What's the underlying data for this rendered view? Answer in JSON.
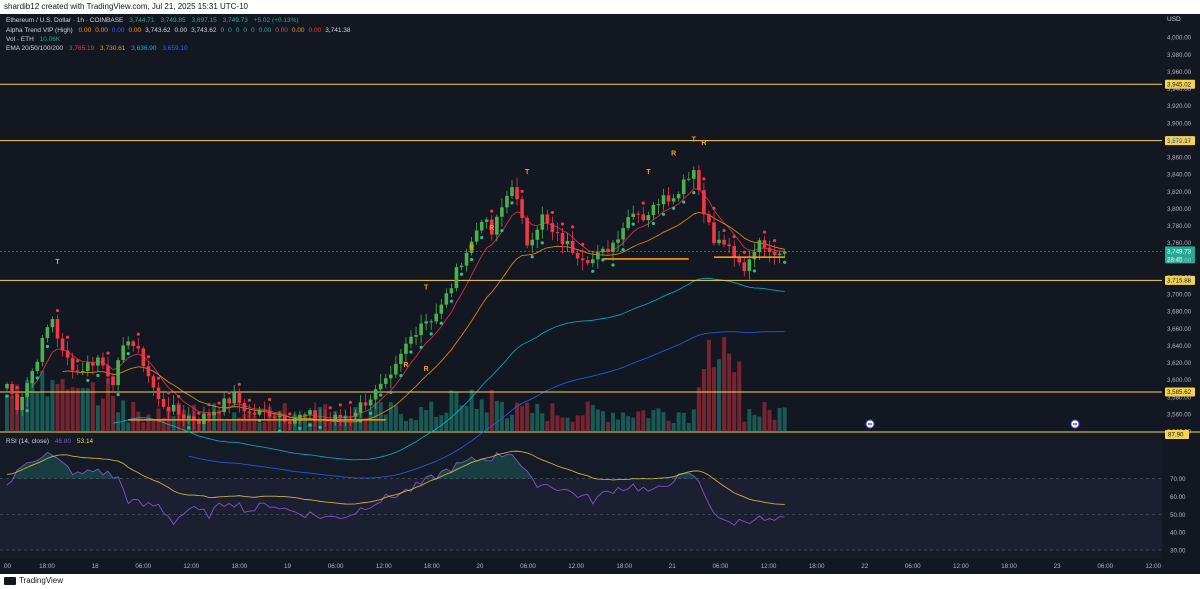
{
  "caption": "shardib12 created with TradingView.com, Jul 21, 2025 15:31 UTC-10",
  "brand": "TradingView",
  "legend": {
    "symbol": "Ethereum / U.S. Dollar · 1h · COINBASE",
    "ohlc": [
      "3,744.71",
      "3,749.85",
      "3,697.15",
      "3,749.73",
      "+5.02 (+0.13%)"
    ],
    "alpha_title": "Alpha Trend VIP (High)",
    "alpha_values": [
      "0.00",
      "0.00",
      "0.00",
      "0.00",
      "3,743.62",
      "0.00",
      "3,743.62",
      "0",
      "0",
      "0",
      "0",
      "0",
      "0.00",
      "0.00",
      "0.00",
      "0.00",
      "3,741.38"
    ],
    "vol_title": "Vol · ETH",
    "vol_value": "10.06K",
    "ema_title": "EMA 20/50/100/200",
    "ema_values": [
      "3,765.19",
      "3,730.61",
      "3,636.90",
      "3,659.10"
    ]
  },
  "currency": "USD",
  "chart_data": [
    {
      "type": "candlestick",
      "title": "Ethereum / U.S. Dollar · 1h · COINBASE",
      "ylim": [
        3540,
        4020
      ],
      "y_ticks": [
        3540,
        3560,
        3580,
        3600,
        3620,
        3640,
        3660,
        3680,
        3700,
        3720,
        3740,
        3760,
        3780,
        3800,
        3820,
        3840,
        3860,
        3880,
        3900,
        3920,
        3940,
        3960,
        3980,
        4000
      ],
      "y_tick_labels": [
        "3,540.00",
        "3,560.00",
        "3,580.00",
        "3,600.00",
        "3,620.00",
        "3,640.00",
        "3,660.00",
        "3,680.00",
        "3,700.00",
        "3,720.00",
        "3,740.00",
        "3,760.00",
        "3,780.00",
        "3,800.00",
        "3,820.00",
        "3,840.00",
        "3,860.00",
        "3,880.00",
        "3,900.00",
        "3,920.00",
        "3,940.00",
        "3,960.00",
        "3,980.00",
        "4,000.00"
      ],
      "x_labels": [
        "18:00",
        "18",
        "06:00",
        "12:00",
        "18:00",
        "19",
        "06:00",
        "12:00",
        "18:00",
        "20",
        "06:00",
        "12:00",
        "18:00",
        "21",
        "06:00",
        "12:00",
        "18:00",
        "22",
        "06:00",
        "12:00",
        "18:00",
        "23",
        "06:00",
        "12:00"
      ],
      "x_label_first": "00",
      "levels": [
        {
          "value": 3945.02,
          "label": "3,945.02"
        },
        {
          "value": 3879.17,
          "label": "3,879.17"
        },
        {
          "value": 3715.88,
          "label": "3,715.88"
        },
        {
          "value": 3585.62,
          "label": "3,585.62"
        }
      ],
      "last_price": {
        "value": 3749.73,
        "label": "3,749.73",
        "countdown": "28:45"
      },
      "anchors": [
        [
          0,
          3595
        ],
        [
          2,
          3570
        ],
        [
          5,
          3610
        ],
        [
          8,
          3660
        ],
        [
          9,
          3672
        ],
        [
          11,
          3630
        ],
        [
          14,
          3610
        ],
        [
          18,
          3625
        ],
        [
          21,
          3600
        ],
        [
          24,
          3650
        ],
        [
          27,
          3620
        ],
        [
          30,
          3575
        ],
        [
          34,
          3560
        ],
        [
          38,
          3553
        ],
        [
          42,
          3568
        ],
        [
          45,
          3580
        ],
        [
          48,
          3560
        ],
        [
          52,
          3562
        ],
        [
          56,
          3555
        ],
        [
          60,
          3558
        ],
        [
          64,
          3552
        ],
        [
          68,
          3560
        ],
        [
          72,
          3580
        ],
        [
          76,
          3600
        ],
        [
          79,
          3640
        ],
        [
          82,
          3668
        ],
        [
          84,
          3672
        ],
        [
          86,
          3685
        ],
        [
          88,
          3710
        ],
        [
          90,
          3740
        ],
        [
          92,
          3760
        ],
        [
          94,
          3790
        ],
        [
          96,
          3770
        ],
        [
          98,
          3800
        ],
        [
          100,
          3830
        ],
        [
          103,
          3760
        ],
        [
          106,
          3790
        ],
        [
          108,
          3770
        ],
        [
          110,
          3762
        ],
        [
          113,
          3748
        ],
        [
          116,
          3740
        ],
        [
          118,
          3748
        ],
        [
          120,
          3760
        ],
        [
          122,
          3780
        ],
        [
          124,
          3800
        ],
        [
          126,
          3790
        ],
        [
          128,
          3800
        ],
        [
          130,
          3820
        ],
        [
          132,
          3810
        ],
        [
          134,
          3835
        ],
        [
          136,
          3845
        ],
        [
          138,
          3800
        ],
        [
          140,
          3760
        ],
        [
          142,
          3760
        ],
        [
          144,
          3740
        ],
        [
          146,
          3730
        ],
        [
          148,
          3755
        ],
        [
          150,
          3760
        ],
        [
          152,
          3750
        ],
        [
          154,
          3749.73
        ]
      ],
      "signals": [
        {
          "i": 10,
          "text": "T",
          "price": 3735
        },
        {
          "i": 79,
          "text": "R",
          "price": 3615
        },
        {
          "i": 83,
          "text": "R",
          "price": 3610
        },
        {
          "i": 83,
          "text": "T",
          "price": 3705
        },
        {
          "i": 92,
          "text": "R",
          "price": 3752
        },
        {
          "i": 96,
          "text": "R",
          "price": 3775
        },
        {
          "i": 103,
          "text": "T",
          "price": 3840
        },
        {
          "i": 127,
          "text": "T",
          "price": 3840
        },
        {
          "i": 132,
          "text": "R",
          "price": 3862
        },
        {
          "i": 136,
          "text": "T",
          "price": 3878
        },
        {
          "i": 138,
          "text": "R",
          "price": 3874
        }
      ]
    },
    {
      "type": "line",
      "title": "RSI (14, close)",
      "values_shown": [
        "46.80",
        "53.14"
      ],
      "top_label": "87.90",
      "ylim": [
        25,
        95
      ],
      "y_ticks": [
        30,
        40,
        50,
        60,
        70
      ],
      "y_tick_labels": [
        "30.00",
        "40.00",
        "50.00",
        "60.00",
        "70.00"
      ],
      "levels": [
        70,
        50,
        30
      ],
      "anchors": [
        [
          0,
          66
        ],
        [
          4,
          80
        ],
        [
          8,
          84
        ],
        [
          11,
          78
        ],
        [
          14,
          72
        ],
        [
          18,
          75
        ],
        [
          22,
          70
        ],
        [
          24,
          58
        ],
        [
          27,
          55
        ],
        [
          30,
          55
        ],
        [
          33,
          46
        ],
        [
          36,
          53
        ],
        [
          40,
          50
        ],
        [
          44,
          58
        ],
        [
          48,
          52
        ],
        [
          52,
          56
        ],
        [
          56,
          52
        ],
        [
          60,
          50
        ],
        [
          64,
          48
        ],
        [
          68,
          50
        ],
        [
          72,
          56
        ],
        [
          76,
          60
        ],
        [
          80,
          64
        ],
        [
          84,
          70
        ],
        [
          88,
          76
        ],
        [
          92,
          80
        ],
        [
          96,
          82
        ],
        [
          100,
          85
        ],
        [
          104,
          68
        ],
        [
          108,
          66
        ],
        [
          112,
          62
        ],
        [
          116,
          58
        ],
        [
          120,
          64
        ],
        [
          124,
          66
        ],
        [
          128,
          62
        ],
        [
          132,
          70
        ],
        [
          136,
          72
        ],
        [
          140,
          52
        ],
        [
          142,
          45
        ],
        [
          145,
          46
        ],
        [
          148,
          48
        ],
        [
          151,
          46
        ],
        [
          154,
          46.8
        ]
      ]
    }
  ]
}
